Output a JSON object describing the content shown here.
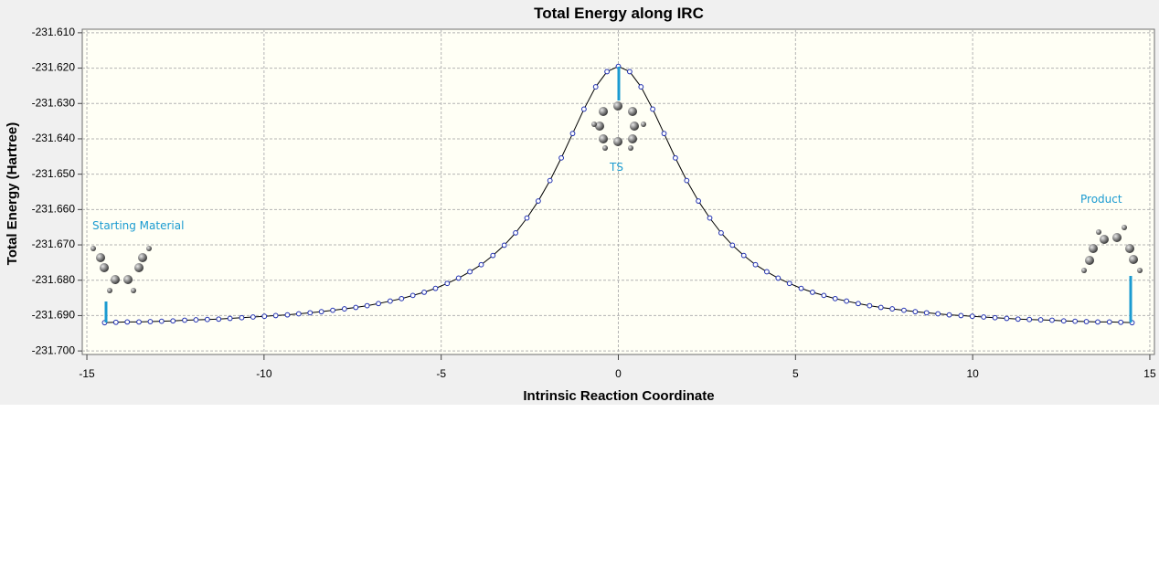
{
  "chart_data": {
    "type": "line",
    "title": "Total Energy along IRC",
    "x_label": "Intrinsic Reaction Coordinate",
    "y_label": "Total Energy (Hartree)",
    "annotations": [
      "Starting Material",
      "TS",
      "Product"
    ],
    "x": [
      -14.5,
      -14.18,
      -13.86,
      -13.53,
      -13.21,
      -12.89,
      -12.57,
      -12.24,
      -11.92,
      -11.6,
      -11.28,
      -10.96,
      -10.63,
      -10.31,
      -9.99,
      -9.67,
      -9.34,
      -9.02,
      -8.7,
      -8.38,
      -8.06,
      -7.73,
      -7.41,
      -7.09,
      -6.77,
      -6.44,
      -6.12,
      -5.8,
      -5.48,
      -5.16,
      -4.83,
      -4.51,
      -4.19,
      -3.87,
      -3.54,
      -3.22,
      -2.9,
      -2.58,
      -2.26,
      -1.93,
      -1.61,
      -1.29,
      -0.97,
      -0.64,
      -0.32,
      0.0,
      0.32,
      0.64,
      0.97,
      1.29,
      1.61,
      1.93,
      2.26,
      2.58,
      2.9,
      3.22,
      3.54,
      3.87,
      4.19,
      4.51,
      4.83,
      5.16,
      5.48,
      5.8,
      6.12,
      6.44,
      6.77,
      7.09,
      7.41,
      7.73,
      8.06,
      8.38,
      8.7,
      9.02,
      9.34,
      9.67,
      9.99,
      10.31,
      10.63,
      10.96,
      11.28,
      11.6,
      11.92,
      12.24,
      12.57,
      12.89,
      13.21,
      13.53,
      13.86,
      14.18,
      14.5
    ],
    "values": [
      -231.692,
      -231.6919,
      -231.6918,
      -231.6918,
      -231.6917,
      -231.6916,
      -231.6915,
      -231.6913,
      -231.6912,
      -231.6911,
      -231.691,
      -231.6908,
      -231.6906,
      -231.6904,
      -231.6902,
      -231.69,
      -231.6898,
      -231.6895,
      -231.6892,
      -231.6889,
      -231.6885,
      -231.6881,
      -231.6877,
      -231.6872,
      -231.6866,
      -231.6859,
      -231.6852,
      -231.6843,
      -231.6834,
      -231.6823,
      -231.6809,
      -231.6794,
      -231.6776,
      -231.6756,
      -231.673,
      -231.6701,
      -231.6666,
      -231.6624,
      -231.6576,
      -231.6518,
      -231.6454,
      -231.6385,
      -231.6316,
      -231.6253,
      -231.621,
      -231.6195,
      -231.621,
      -231.6253,
      -231.6316,
      -231.6385,
      -231.6454,
      -231.6518,
      -231.6576,
      -231.6624,
      -231.6666,
      -231.6701,
      -231.673,
      -231.6756,
      -231.6776,
      -231.6794,
      -231.6809,
      -231.6823,
      -231.6834,
      -231.6843,
      -231.6852,
      -231.6859,
      -231.6866,
      -231.6872,
      -231.6877,
      -231.6881,
      -231.6885,
      -231.6889,
      -231.6892,
      -231.6895,
      -231.6898,
      -231.69,
      -231.6902,
      -231.6904,
      -231.6906,
      -231.6908,
      -231.691,
      -231.6911,
      -231.6912,
      -231.6913,
      -231.6915,
      -231.6916,
      -231.6917,
      -231.6918,
      -231.6918,
      -231.6919,
      -231.692
    ],
    "color": "#000000",
    "marker_color": "#1f2fb0",
    "xlim": [
      -15.13,
      15.13
    ],
    "ylim": [
      -231.701,
      -231.609
    ],
    "xticks": [
      -15,
      -10,
      -5,
      0,
      5,
      10,
      15
    ],
    "yticks": [
      {
        "value": -231.61,
        "label": "-231.610"
      },
      {
        "value": -231.62,
        "label": "-231.620"
      },
      {
        "value": -231.63,
        "label": "-231.630"
      },
      {
        "value": -231.64,
        "label": "-231.640"
      },
      {
        "value": -231.65,
        "label": "-231.650"
      },
      {
        "value": -231.66,
        "label": "-231.660"
      },
      {
        "value": -231.67,
        "label": "-231.670"
      },
      {
        "value": -231.68,
        "label": "-231.680"
      },
      {
        "value": -231.69,
        "label": "-231.690"
      },
      {
        "value": -231.7,
        "label": "-231.700"
      }
    ],
    "grid": true
  }
}
